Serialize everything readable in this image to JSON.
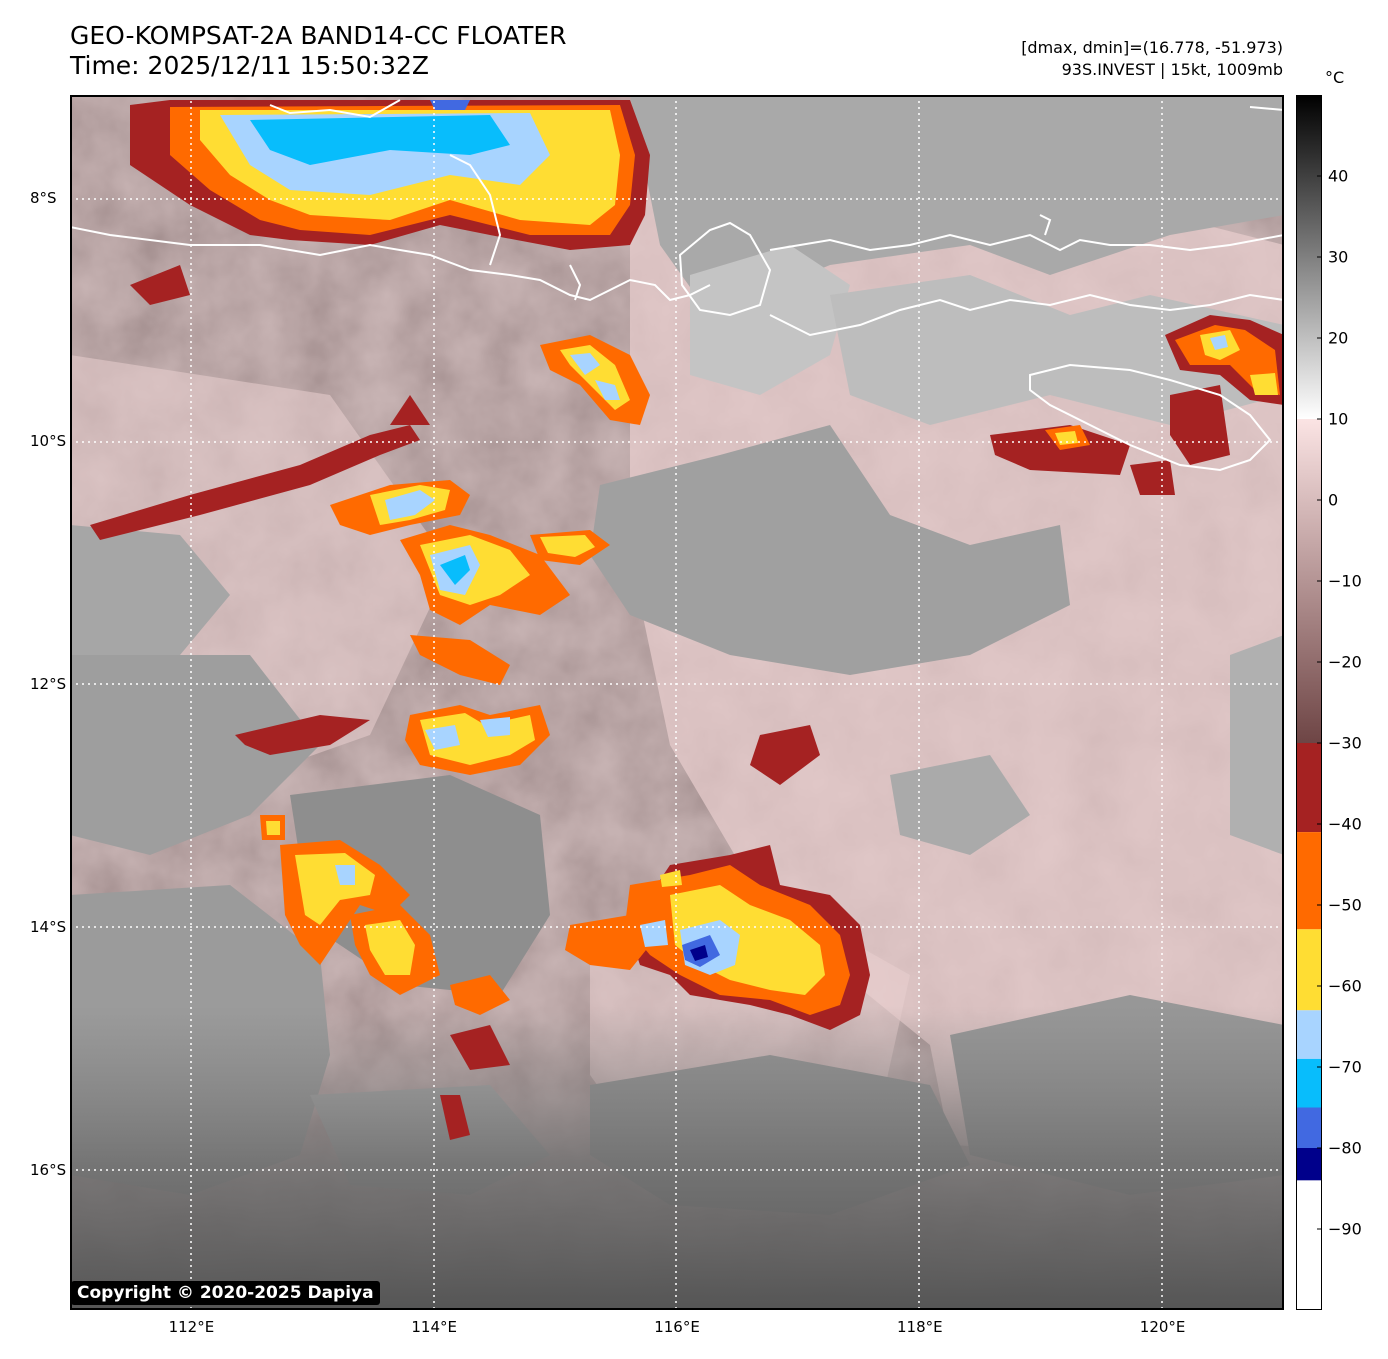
{
  "header": {
    "title": "GEO-KOMPSAT-2A BAND14-CC FLOATER",
    "time": "Time: 2025/12/11 15:50:32Z",
    "range": "[dmax, dmin]=(16.778, -51.973)",
    "storm": "93S.INVEST | 15kt, 1009mb"
  },
  "map": {
    "lon_labels": [
      "112°E",
      "114°E",
      "116°E",
      "118°E",
      "120°E"
    ],
    "lat_labels": [
      "8°S",
      "10°S",
      "12°S",
      "14°S",
      "16°S"
    ],
    "lon_range": [
      111.0,
      121.0
    ],
    "lat_range": [
      -7.15,
      -17.15
    ],
    "gridlines": true
  },
  "colorbar": {
    "unit": "°C",
    "ticks": [
      "40",
      "30",
      "20",
      "10",
      "0",
      "−10",
      "−20",
      "−30",
      "−40",
      "−50",
      "−60",
      "−70",
      "−80",
      "−90"
    ],
    "tick_values": [
      40,
      30,
      20,
      10,
      0,
      -10,
      -20,
      -30,
      -40,
      -50,
      -60,
      -70,
      -80,
      -90
    ],
    "range": [
      -100,
      50
    ],
    "bands": [
      {
        "from": 10,
        "to": 50,
        "color": "#000000",
        "to_color": "#ffffff"
      },
      {
        "from": -30,
        "to": 10,
        "color": "#fbe4e4",
        "to_color": "#6e4545"
      },
      {
        "from": -41,
        "to": -30,
        "color": "#a52222"
      },
      {
        "from": -53,
        "to": -41,
        "color": "#ff6a00"
      },
      {
        "from": -63,
        "to": -53,
        "color": "#ffdd33"
      },
      {
        "from": -69,
        "to": -63,
        "color": "#a8d4ff"
      },
      {
        "from": -75,
        "to": -69,
        "color": "#08bdfc"
      },
      {
        "from": -80,
        "to": -75,
        "color": "#4169e1"
      },
      {
        "from": -84,
        "to": -80,
        "color": "#00008b"
      },
      {
        "from": -100,
        "to": -84,
        "color": "#ffffff"
      }
    ]
  },
  "copyright": "Copyright © 2020-2025 Dapiya"
}
